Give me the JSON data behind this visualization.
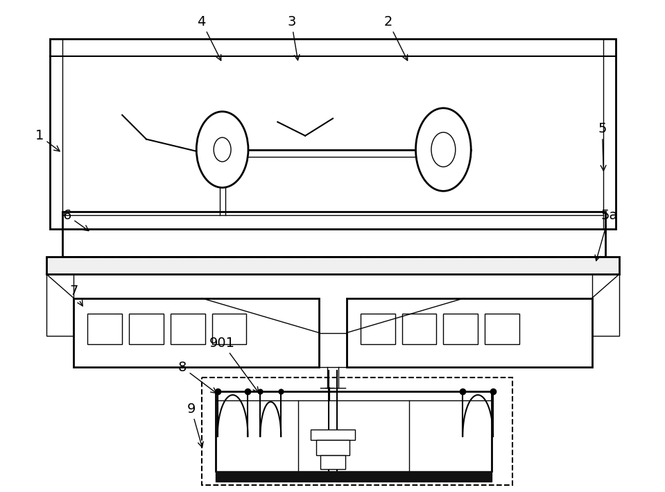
{
  "bg_color": "#ffffff",
  "line_color": "#000000",
  "label_color": "#000000",
  "fig_width": 9.59,
  "fig_height": 7.09,
  "dpi": 100
}
